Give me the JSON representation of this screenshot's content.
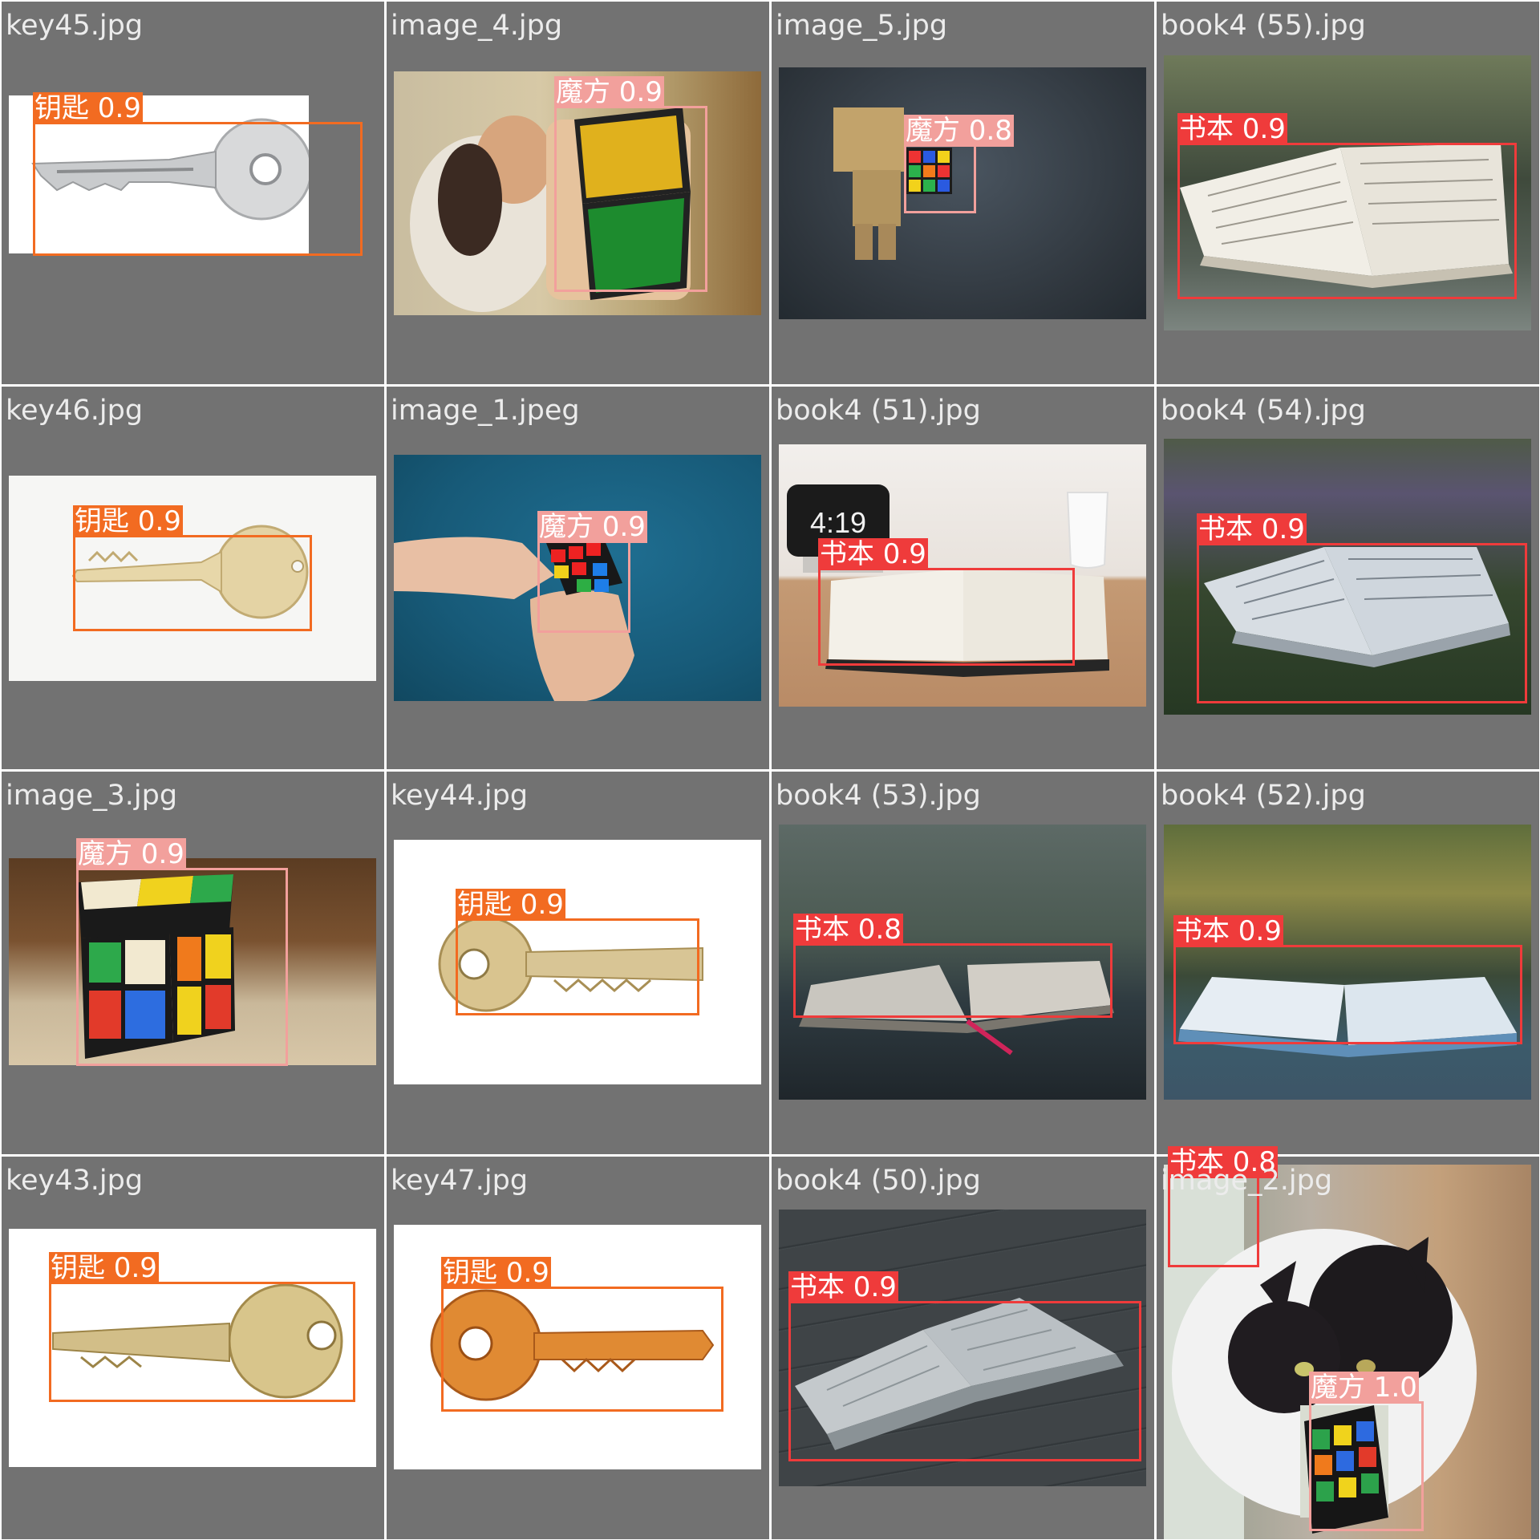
{
  "colors": {
    "background": "#727272",
    "cell_gap": "#ffffff",
    "filename_text": "#ececec",
    "key_class": "#f26b21",
    "cube_class": "#f2a09c",
    "book_class": "#ef3b3b"
  },
  "cells": [
    {
      "name": "key45.jpg",
      "scene": "key-silver",
      "detections": [
        {
          "label": "钥匙 0.9",
          "cls": "key"
        }
      ]
    },
    {
      "name": "image_4.jpg",
      "scene": "cube-person",
      "detections": [
        {
          "label": "魔方 0.9",
          "cls": "cube"
        }
      ]
    },
    {
      "name": "image_5.jpg",
      "scene": "cube-toybox",
      "detections": [
        {
          "label": "魔方 0.8",
          "cls": "cube"
        }
      ]
    },
    {
      "name": "book4 (55).jpg",
      "scene": "book",
      "detections": [
        {
          "label": "书本 0.9",
          "cls": "book"
        }
      ]
    },
    {
      "name": "key46.jpg",
      "scene": "key-brass",
      "detections": [
        {
          "label": "钥匙 0.9",
          "cls": "key"
        }
      ]
    },
    {
      "name": "image_1.jpeg",
      "scene": "cube-hands-blue",
      "detections": [
        {
          "label": "魔方 0.9",
          "cls": "cube"
        }
      ]
    },
    {
      "name": "book4 (51).jpg",
      "scene": "book-desk",
      "clock": "4:19",
      "detections": [
        {
          "label": "书本 0.9",
          "cls": "book"
        }
      ]
    },
    {
      "name": "book4 (54).jpg",
      "scene": "book-grass",
      "detections": [
        {
          "label": "书本 0.9",
          "cls": "book"
        }
      ]
    },
    {
      "name": "image_3.jpg",
      "scene": "cube-big",
      "detections": [
        {
          "label": "魔方 0.9",
          "cls": "cube"
        }
      ]
    },
    {
      "name": "key44.jpg",
      "scene": "key-brass-left",
      "detections": [
        {
          "label": "钥匙 0.9",
          "cls": "key"
        }
      ]
    },
    {
      "name": "book4 (53).jpg",
      "scene": "book-dark",
      "detections": [
        {
          "label": "书本 0.8",
          "cls": "book"
        }
      ]
    },
    {
      "name": "book4 (52).jpg",
      "scene": "book-blue",
      "detections": [
        {
          "label": "书本 0.9",
          "cls": "book"
        }
      ]
    },
    {
      "name": "key43.jpg",
      "scene": "key-gold",
      "detections": [
        {
          "label": "钥匙 0.9",
          "cls": "key"
        }
      ]
    },
    {
      "name": "key47.jpg",
      "scene": "key-copper",
      "detections": [
        {
          "label": "钥匙 0.9",
          "cls": "key"
        }
      ]
    },
    {
      "name": "book4 (50).jpg",
      "scene": "book-wood",
      "detections": [
        {
          "label": "书本 0.9",
          "cls": "book"
        }
      ]
    },
    {
      "name": "image_2.jpg",
      "scene": "cat-cube",
      "detections": [
        {
          "label": "书本 0.8",
          "cls": "book"
        },
        {
          "label": "魔方 1.0",
          "cls": "cube"
        }
      ]
    }
  ]
}
